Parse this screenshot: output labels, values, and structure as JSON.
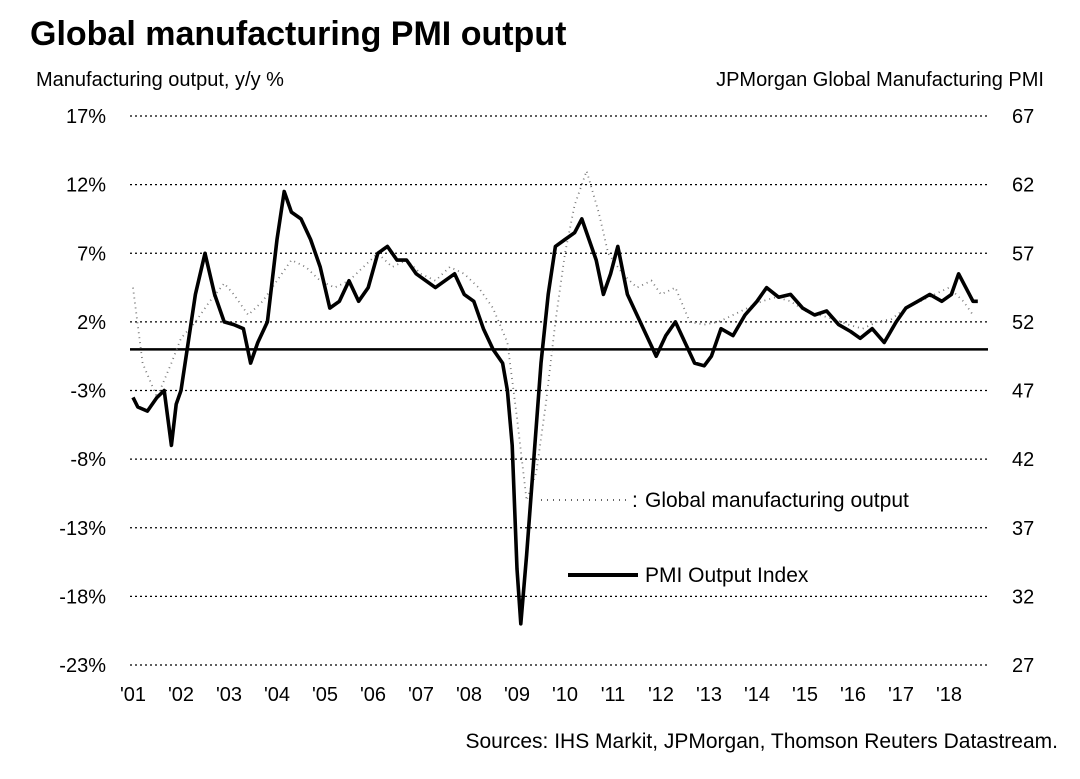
{
  "chart_data": {
    "type": "line",
    "title": "Global manufacturing PMI output",
    "left_axis_label": "Manufacturing output, y/y %",
    "right_axis_label": "JPMorgan Global Manufacturing PMI",
    "left_axis": {
      "min": -23,
      "max": 17,
      "ticks": [
        "17%",
        "12%",
        "7%",
        "2%",
        "-3%",
        "-8%",
        "-13%",
        "-18%",
        "-23%"
      ]
    },
    "right_axis": {
      "min": 27,
      "max": 67,
      "ticks": [
        "67",
        "62",
        "57",
        "52",
        "47",
        "42",
        "37",
        "32",
        "27"
      ]
    },
    "x_axis": {
      "min": 2001.0,
      "max": 2018.6,
      "ticks": [
        "'01",
        "'02",
        "'03",
        "'04",
        "'05",
        "'06",
        "'07",
        "'08",
        "'09",
        "'10",
        "'11",
        "'12",
        "'13",
        "'14",
        "'15",
        "'16",
        "'17",
        "'18"
      ]
    },
    "baseline_pmi": 50,
    "grid": "horizontal-dotted",
    "legend_position": "lower-right",
    "series": [
      {
        "name": "Global manufacturing output",
        "axis": "left",
        "style": "dotted-light",
        "points": [
          [
            2001.0,
            4.5
          ],
          [
            2001.2,
            -1.0
          ],
          [
            2001.5,
            -3.5
          ],
          [
            2001.8,
            -1.0
          ],
          [
            2002.0,
            0.8
          ],
          [
            2002.3,
            2.0
          ],
          [
            2002.6,
            3.5
          ],
          [
            2002.9,
            4.8
          ],
          [
            2003.1,
            4.0
          ],
          [
            2003.4,
            2.5
          ],
          [
            2003.7,
            3.5
          ],
          [
            2004.0,
            5.0
          ],
          [
            2004.3,
            6.5
          ],
          [
            2004.6,
            6.0
          ],
          [
            2004.9,
            5.0
          ],
          [
            2005.2,
            4.5
          ],
          [
            2005.5,
            5.0
          ],
          [
            2005.8,
            6.0
          ],
          [
            2006.1,
            7.0
          ],
          [
            2006.4,
            6.0
          ],
          [
            2006.7,
            6.5
          ],
          [
            2007.0,
            5.5
          ],
          [
            2007.3,
            5.0
          ],
          [
            2007.6,
            6.0
          ],
          [
            2007.9,
            5.5
          ],
          [
            2008.2,
            4.5
          ],
          [
            2008.5,
            3.0
          ],
          [
            2008.8,
            0.5
          ],
          [
            2009.0,
            -5.0
          ],
          [
            2009.2,
            -11.0
          ],
          [
            2009.4,
            -9.0
          ],
          [
            2009.6,
            -4.0
          ],
          [
            2009.8,
            2.0
          ],
          [
            2010.0,
            7.0
          ],
          [
            2010.2,
            10.5
          ],
          [
            2010.45,
            13.0
          ],
          [
            2010.7,
            10.0
          ],
          [
            2010.9,
            7.0
          ],
          [
            2011.2,
            5.5
          ],
          [
            2011.5,
            4.5
          ],
          [
            2011.8,
            5.0
          ],
          [
            2012.0,
            4.0
          ],
          [
            2012.3,
            4.5
          ],
          [
            2012.6,
            2.0
          ],
          [
            2012.9,
            1.8
          ],
          [
            2013.2,
            2.0
          ],
          [
            2013.5,
            2.5
          ],
          [
            2013.8,
            3.0
          ],
          [
            2014.1,
            3.5
          ],
          [
            2014.4,
            3.8
          ],
          [
            2014.7,
            3.5
          ],
          [
            2015.0,
            2.8
          ],
          [
            2015.3,
            2.5
          ],
          [
            2015.6,
            2.2
          ],
          [
            2015.9,
            1.8
          ],
          [
            2016.2,
            1.5
          ],
          [
            2016.5,
            2.0
          ],
          [
            2016.8,
            2.2
          ],
          [
            2017.1,
            3.0
          ],
          [
            2017.4,
            3.5
          ],
          [
            2017.7,
            4.0
          ],
          [
            2018.0,
            4.5
          ],
          [
            2018.3,
            3.5
          ],
          [
            2018.5,
            2.5
          ]
        ]
      },
      {
        "name": "PMI Output Index",
        "axis": "right",
        "style": "solid-bold",
        "points": [
          [
            2001.0,
            46.5
          ],
          [
            2001.1,
            45.8
          ],
          [
            2001.3,
            45.5
          ],
          [
            2001.5,
            46.5
          ],
          [
            2001.65,
            47.0
          ],
          [
            2001.8,
            43.0
          ],
          [
            2001.9,
            46.0
          ],
          [
            2002.0,
            47.0
          ],
          [
            2002.15,
            50.5
          ],
          [
            2002.3,
            54.0
          ],
          [
            2002.5,
            57.0
          ],
          [
            2002.7,
            54.0
          ],
          [
            2002.9,
            52.0
          ],
          [
            2003.1,
            51.8
          ],
          [
            2003.3,
            51.5
          ],
          [
            2003.45,
            49.0
          ],
          [
            2003.6,
            50.5
          ],
          [
            2003.8,
            52.0
          ],
          [
            2004.0,
            58.0
          ],
          [
            2004.15,
            61.5
          ],
          [
            2004.3,
            60.0
          ],
          [
            2004.5,
            59.5
          ],
          [
            2004.7,
            58.0
          ],
          [
            2004.9,
            56.0
          ],
          [
            2005.1,
            53.0
          ],
          [
            2005.3,
            53.5
          ],
          [
            2005.5,
            55.0
          ],
          [
            2005.7,
            53.5
          ],
          [
            2005.9,
            54.5
          ],
          [
            2006.1,
            57.0
          ],
          [
            2006.3,
            57.5
          ],
          [
            2006.5,
            56.5
          ],
          [
            2006.7,
            56.5
          ],
          [
            2006.9,
            55.5
          ],
          [
            2007.1,
            55.0
          ],
          [
            2007.3,
            54.5
          ],
          [
            2007.5,
            55.0
          ],
          [
            2007.7,
            55.5
          ],
          [
            2007.9,
            54.0
          ],
          [
            2008.1,
            53.5
          ],
          [
            2008.3,
            51.5
          ],
          [
            2008.5,
            50.0
          ],
          [
            2008.7,
            49.0
          ],
          [
            2008.8,
            47.0
          ],
          [
            2008.9,
            43.0
          ],
          [
            2009.0,
            34.0
          ],
          [
            2009.08,
            30.0
          ],
          [
            2009.2,
            35.0
          ],
          [
            2009.35,
            42.0
          ],
          [
            2009.5,
            49.0
          ],
          [
            2009.65,
            54.0
          ],
          [
            2009.8,
            57.5
          ],
          [
            2010.0,
            58.0
          ],
          [
            2010.2,
            58.5
          ],
          [
            2010.35,
            59.5
          ],
          [
            2010.5,
            58.0
          ],
          [
            2010.65,
            56.5
          ],
          [
            2010.8,
            54.0
          ],
          [
            2010.95,
            55.5
          ],
          [
            2011.1,
            57.5
          ],
          [
            2011.3,
            54.0
          ],
          [
            2011.5,
            52.5
          ],
          [
            2011.7,
            51.0
          ],
          [
            2011.9,
            49.5
          ],
          [
            2012.1,
            51.0
          ],
          [
            2012.3,
            52.0
          ],
          [
            2012.5,
            50.5
          ],
          [
            2012.7,
            49.0
          ],
          [
            2012.9,
            48.8
          ],
          [
            2013.05,
            49.5
          ],
          [
            2013.25,
            51.5
          ],
          [
            2013.5,
            51.0
          ],
          [
            2013.75,
            52.5
          ],
          [
            2014.0,
            53.5
          ],
          [
            2014.2,
            54.5
          ],
          [
            2014.45,
            53.8
          ],
          [
            2014.7,
            54.0
          ],
          [
            2014.95,
            53.0
          ],
          [
            2015.2,
            52.5
          ],
          [
            2015.45,
            52.8
          ],
          [
            2015.7,
            51.8
          ],
          [
            2015.95,
            51.3
          ],
          [
            2016.15,
            50.8
          ],
          [
            2016.4,
            51.5
          ],
          [
            2016.65,
            50.5
          ],
          [
            2016.9,
            52.0
          ],
          [
            2017.1,
            53.0
          ],
          [
            2017.35,
            53.5
          ],
          [
            2017.6,
            54.0
          ],
          [
            2017.85,
            53.5
          ],
          [
            2018.05,
            54.0
          ],
          [
            2018.2,
            55.5
          ],
          [
            2018.35,
            54.5
          ],
          [
            2018.5,
            53.5
          ],
          [
            2018.6,
            53.5
          ]
        ]
      }
    ],
    "legend": [
      {
        "label": "Global manufacturing output",
        "style": "dotted-light"
      },
      {
        "label": "PMI Output Index",
        "style": "solid-bold"
      }
    ],
    "source": "Sources: IHS Markit, JPMorgan, Thomson Reuters Datastream."
  }
}
